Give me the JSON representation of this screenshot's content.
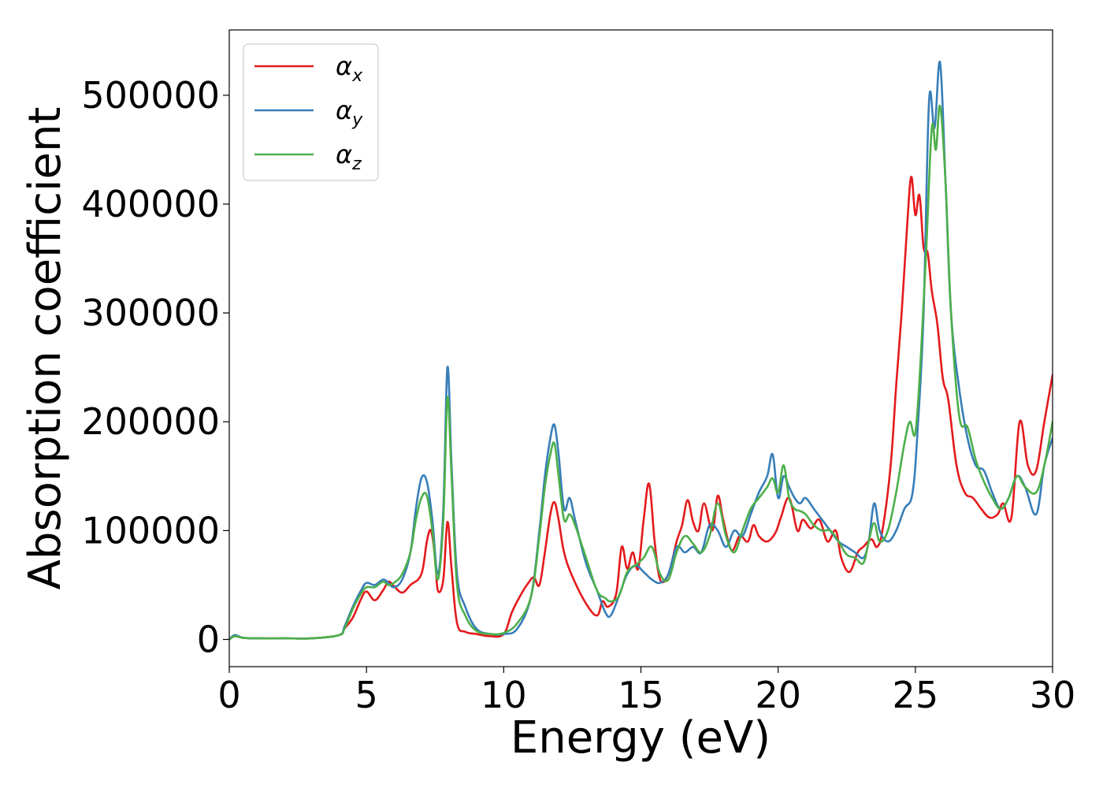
{
  "chart_data": {
    "type": "line",
    "xlabel": "Energy (eV)",
    "ylabel": "Absorption coefficient",
    "xlim": [
      0,
      30
    ],
    "ylim": [
      -25000,
      560000
    ],
    "xticks": [
      0,
      5,
      10,
      15,
      20,
      25,
      30
    ],
    "xtick_labels": [
      "0",
      "5",
      "10",
      "15",
      "20",
      "25",
      "30"
    ],
    "yticks": [
      0,
      100000,
      200000,
      300000,
      400000,
      500000
    ],
    "ytick_labels": [
      "0",
      "100000",
      "200000",
      "300000",
      "400000",
      "500000"
    ],
    "grid": false,
    "legend_position": "top-left",
    "series": [
      {
        "name": "α_x",
        "label_base": "α",
        "label_sub": "x",
        "color": "#e41a1c",
        "x": [
          0,
          0.2,
          0.5,
          1,
          2,
          3,
          4,
          4.2,
          4.5,
          4.8,
          5,
          5.3,
          5.6,
          5.8,
          6,
          6.3,
          6.6,
          7,
          7.2,
          7.35,
          7.5,
          7.6,
          7.8,
          7.95,
          8.1,
          8.3,
          8.6,
          9,
          9.5,
          10,
          10.3,
          10.6,
          10.9,
          11.1,
          11.3,
          11.5,
          11.7,
          11.85,
          12,
          12.2,
          12.5,
          13,
          13.4,
          13.6,
          13.8,
          14.1,
          14.3,
          14.5,
          14.7,
          14.9,
          15.1,
          15.3,
          15.5,
          15.7,
          16,
          16.3,
          16.5,
          16.7,
          16.9,
          17.1,
          17.3,
          17.6,
          17.8,
          18,
          18.3,
          18.6,
          18.9,
          19.1,
          19.3,
          19.6,
          19.9,
          20.1,
          20.4,
          20.7,
          20.9,
          21.2,
          21.5,
          21.8,
          22.1,
          22.3,
          22.6,
          22.9,
          23.1,
          23.4,
          23.6,
          23.8,
          24.1,
          24.3,
          24.5,
          24.7,
          24.85,
          25,
          25.15,
          25.3,
          25.45,
          25.6,
          25.8,
          26,
          26.2,
          26.5,
          26.8,
          27.1,
          27.4,
          27.7,
          28,
          28.2,
          28.5,
          28.8,
          29.1,
          29.4,
          29.7,
          30
        ],
        "y": [
          0,
          3000,
          1500,
          1000,
          1000,
          1000,
          4000,
          10000,
          20000,
          37000,
          44000,
          36000,
          45000,
          53000,
          49000,
          43000,
          50000,
          60000,
          90000,
          100000,
          75000,
          45000,
          55000,
          108000,
          65000,
          15000,
          7000,
          5000,
          3000,
          5000,
          25000,
          40000,
          52000,
          57000,
          50000,
          80000,
          115000,
          126000,
          110000,
          80000,
          58000,
          33000,
          22000,
          35000,
          30000,
          42000,
          85000,
          65000,
          80000,
          65000,
          110000,
          143000,
          90000,
          55000,
          60000,
          90000,
          105000,
          128000,
          108000,
          100000,
          125000,
          100000,
          132000,
          110000,
          82000,
          95000,
          90000,
          105000,
          95000,
          90000,
          98000,
          112000,
          130000,
          100000,
          110000,
          102000,
          110000,
          90000,
          100000,
          75000,
          62000,
          80000,
          85000,
          92000,
          85000,
          100000,
          160000,
          233000,
          300000,
          380000,
          425000,
          390000,
          408000,
          360000,
          355000,
          320000,
          290000,
          240000,
          220000,
          160000,
          135000,
          130000,
          120000,
          112000,
          115000,
          125000,
          112000,
          200000,
          160000,
          155000,
          200000,
          243000
        ]
      },
      {
        "name": "α_y",
        "label_base": "α",
        "label_sub": "y",
        "color": "#377eb8",
        "x": [
          0,
          0.2,
          0.5,
          1,
          2,
          3,
          4,
          4.2,
          4.5,
          4.8,
          5,
          5.3,
          5.6,
          5.8,
          6,
          6.3,
          6.6,
          6.8,
          7,
          7.2,
          7.4,
          7.6,
          7.8,
          7.95,
          8.1,
          8.3,
          8.6,
          9,
          9.5,
          10,
          10.5,
          11,
          11.3,
          11.5,
          11.7,
          11.85,
          12,
          12.2,
          12.4,
          12.6,
          13,
          13.4,
          13.7,
          13.9,
          14.2,
          14.5,
          14.8,
          15.1,
          15.4,
          15.7,
          16,
          16.3,
          16.6,
          16.9,
          17.2,
          17.5,
          17.8,
          18.1,
          18.4,
          18.7,
          19,
          19.3,
          19.6,
          19.8,
          20,
          20.2,
          20.4,
          20.6,
          20.8,
          21,
          21.3,
          21.6,
          21.9,
          22.2,
          22.5,
          22.8,
          23.1,
          23.3,
          23.5,
          23.7,
          24,
          24.3,
          24.6,
          24.9,
          25.1,
          25.3,
          25.5,
          25.7,
          25.9,
          26.1,
          26.3,
          26.6,
          26.9,
          27.2,
          27.5,
          27.8,
          28.1,
          28.4,
          28.7,
          29,
          29.4,
          29.7,
          30
        ],
        "y": [
          0,
          4000,
          1500,
          1000,
          1000,
          1000,
          4000,
          12000,
          30000,
          45000,
          52000,
          50000,
          55000,
          52000,
          48000,
          55000,
          80000,
          120000,
          148000,
          145000,
          110000,
          60000,
          120000,
          250000,
          160000,
          60000,
          30000,
          10000,
          5000,
          5000,
          10000,
          40000,
          100000,
          150000,
          185000,
          197000,
          170000,
          120000,
          130000,
          110000,
          70000,
          45000,
          25000,
          22000,
          40000,
          60000,
          68000,
          62000,
          55000,
          52000,
          60000,
          85000,
          80000,
          85000,
          80000,
          105000,
          100000,
          85000,
          100000,
          95000,
          115000,
          135000,
          150000,
          170000,
          130000,
          150000,
          140000,
          130000,
          125000,
          130000,
          120000,
          110000,
          100000,
          90000,
          85000,
          80000,
          75000,
          90000,
          125000,
          100000,
          90000,
          100000,
          120000,
          135000,
          200000,
          300000,
          495000,
          470000,
          530000,
          420000,
          300000,
          230000,
          185000,
          160000,
          155000,
          135000,
          120000,
          130000,
          150000,
          140000,
          115000,
          160000,
          185000
        ]
      },
      {
        "name": "α_z",
        "label_base": "α",
        "label_sub": "z",
        "color": "#4daf4a",
        "x": [
          0,
          0.2,
          0.5,
          1,
          2,
          3,
          4,
          4.2,
          4.5,
          4.8,
          5,
          5.3,
          5.6,
          5.8,
          6,
          6.3,
          6.6,
          6.8,
          7,
          7.2,
          7.4,
          7.6,
          7.8,
          7.95,
          8.1,
          8.3,
          8.6,
          9,
          9.5,
          10,
          10.5,
          11,
          11.3,
          11.5,
          11.7,
          11.85,
          12,
          12.2,
          12.4,
          12.6,
          13,
          13.4,
          13.7,
          13.9,
          14.2,
          14.5,
          14.8,
          15.1,
          15.4,
          15.7,
          16,
          16.3,
          16.6,
          16.9,
          17.2,
          17.5,
          17.8,
          18.1,
          18.4,
          18.7,
          19,
          19.3,
          19.6,
          19.8,
          20,
          20.2,
          20.4,
          20.6,
          20.8,
          21,
          21.3,
          21.6,
          21.9,
          22.2,
          22.5,
          22.8,
          23.1,
          23.3,
          23.5,
          23.7,
          24,
          24.3,
          24.6,
          24.8,
          25,
          25.2,
          25.4,
          25.6,
          25.75,
          25.9,
          26.1,
          26.3,
          26.6,
          26.9,
          27.2,
          27.5,
          27.8,
          28.1,
          28.4,
          28.7,
          29,
          29.4,
          29.7,
          30
        ],
        "y": [
          0,
          3000,
          1500,
          1000,
          1000,
          1000,
          4000,
          10000,
          28000,
          42000,
          48000,
          48000,
          53000,
          50000,
          52000,
          60000,
          80000,
          110000,
          130000,
          132000,
          100000,
          55000,
          110000,
          222000,
          150000,
          50000,
          22000,
          8000,
          5000,
          6000,
          15000,
          40000,
          95000,
          140000,
          170000,
          180000,
          150000,
          110000,
          115000,
          105000,
          75000,
          45000,
          38000,
          35000,
          40000,
          62000,
          68000,
          75000,
          85000,
          60000,
          55000,
          80000,
          95000,
          88000,
          80000,
          95000,
          125000,
          95000,
          80000,
          100000,
          120000,
          130000,
          140000,
          148000,
          135000,
          160000,
          130000,
          120000,
          118000,
          115000,
          105000,
          100000,
          100000,
          90000,
          78000,
          75000,
          70000,
          90000,
          107000,
          90000,
          100000,
          135000,
          180000,
          200000,
          190000,
          260000,
          360000,
          470000,
          450000,
          490000,
          420000,
          300000,
          205000,
          195000,
          165000,
          145000,
          130000,
          120000,
          130000,
          150000,
          140000,
          135000,
          160000,
          200000
        ]
      }
    ]
  }
}
